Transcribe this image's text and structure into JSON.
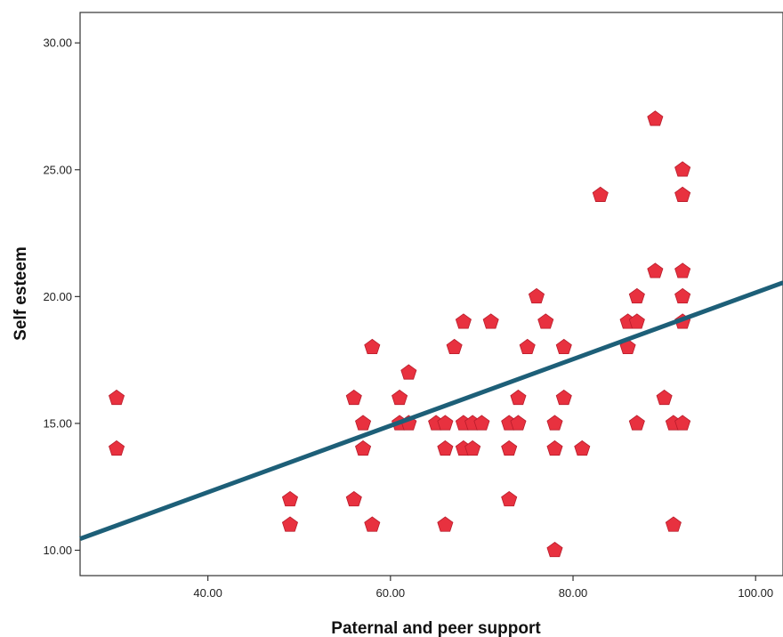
{
  "chart_data": {
    "type": "scatter",
    "xlabel": "Paternal and peer support",
    "ylabel": "Self esteem",
    "xlim": [
      26,
      103
    ],
    "ylim": [
      9.0,
      31.2
    ],
    "x_ticks": [
      "40.00",
      "60.00",
      "80.00",
      "100.00"
    ],
    "y_ticks": [
      "10.00",
      "15.00",
      "20.00",
      "25.00",
      "30.00"
    ],
    "grid": false,
    "marker": "pentagon",
    "colors": {
      "marker": "#e8313f",
      "marker_edge": "#b81c2b",
      "fit_line": "#1d5f78",
      "axis": "#333333"
    },
    "points": [
      [
        30,
        16
      ],
      [
        30,
        14
      ],
      [
        49,
        12
      ],
      [
        49,
        11
      ],
      [
        56,
        16
      ],
      [
        56,
        12
      ],
      [
        57,
        15
      ],
      [
        57,
        14
      ],
      [
        58,
        18
      ],
      [
        58,
        11
      ],
      [
        61,
        16
      ],
      [
        61,
        15
      ],
      [
        62,
        17
      ],
      [
        62,
        15
      ],
      [
        65,
        15
      ],
      [
        66,
        15
      ],
      [
        66,
        14
      ],
      [
        66,
        11
      ],
      [
        67,
        18
      ],
      [
        68,
        19
      ],
      [
        68,
        15
      ],
      [
        68,
        14
      ],
      [
        69,
        15
      ],
      [
        69,
        14
      ],
      [
        70,
        15
      ],
      [
        71,
        19
      ],
      [
        73,
        15
      ],
      [
        73,
        14
      ],
      [
        73,
        12
      ],
      [
        74,
        16
      ],
      [
        74,
        15
      ],
      [
        75,
        18
      ],
      [
        76,
        20
      ],
      [
        77,
        19
      ],
      [
        78,
        15
      ],
      [
        78,
        14
      ],
      [
        78,
        10
      ],
      [
        79,
        18
      ],
      [
        79,
        16
      ],
      [
        81,
        14
      ],
      [
        83,
        24
      ],
      [
        86,
        19
      ],
      [
        86,
        18
      ],
      [
        87,
        20
      ],
      [
        87,
        19
      ],
      [
        87,
        15
      ],
      [
        89,
        27
      ],
      [
        89,
        21
      ],
      [
        90,
        16
      ],
      [
        91,
        15
      ],
      [
        91,
        11
      ],
      [
        92,
        25
      ],
      [
        92,
        24
      ],
      [
        92,
        21
      ],
      [
        92,
        20
      ],
      [
        92,
        19
      ],
      [
        92,
        15
      ]
    ],
    "fit_line": {
      "x": [
        26,
        103
      ],
      "y": [
        10.45,
        20.55
      ]
    }
  }
}
